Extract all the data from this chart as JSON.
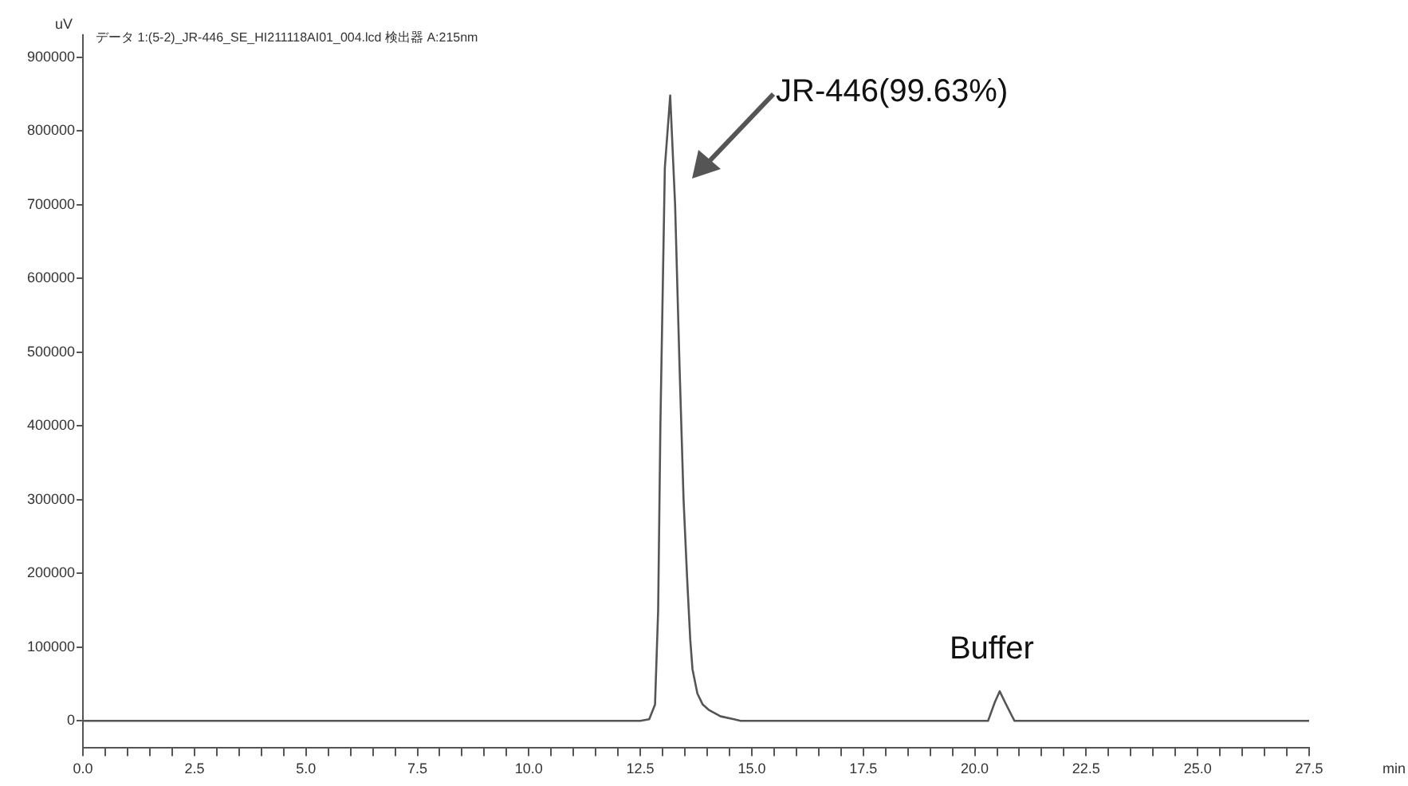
{
  "chart_data": {
    "type": "line",
    "title": "データ 1:(5-2)_JR-446_SE_HI211118AI01_004.lcd 検出器 A:215nm",
    "xlabel": "min",
    "ylabel": "uV",
    "annotations": [
      "JR-446(99.63%)",
      {
        "text": "Buffer",
        "x": 20.56,
        "y": 40500
      }
    ],
    "series": [
      {
        "color": "#555555",
        "x": [
          0,
          5,
          10,
          12.5,
          12.7,
          12.83,
          12.9,
          12.95,
          13.05,
          13.17,
          13.28,
          13.38,
          13.47,
          13.55,
          13.62,
          13.67,
          13.78,
          13.9,
          14.03,
          14.3,
          14.6,
          14.75,
          17.5,
          20.3,
          20.45,
          20.56,
          20.68,
          20.89,
          21.1,
          25,
          27.5
        ],
        "values": [
          0,
          0,
          0,
          0,
          2000,
          22000,
          150000,
          400000,
          750000,
          848000,
          700000,
          480000,
          300000,
          193000,
          110000,
          70000,
          37000,
          22000,
          15000,
          6000,
          2000,
          0,
          0,
          0,
          25000,
          40000,
          25000,
          0,
          0,
          0,
          0
        ]
      }
    ],
    "xlim": [
      0,
      27.5
    ],
    "ylim": [
      -37000,
      930000
    ],
    "yticks": [
      0,
      100000,
      200000,
      300000,
      400000,
      500000,
      600000,
      700000,
      800000,
      900000
    ],
    "xticks": [
      {
        "value": 0,
        "label": "0.0"
      },
      {
        "value": 0.5,
        "label": null
      },
      {
        "value": 1,
        "label": null
      },
      {
        "value": 1.5,
        "label": null
      },
      {
        "value": 2,
        "label": null
      },
      {
        "value": 2.5,
        "label": "2.5"
      },
      {
        "value": 3,
        "label": null
      },
      {
        "value": 3.5,
        "label": null
      },
      {
        "value": 4,
        "label": null
      },
      {
        "value": 4.5,
        "label": null
      },
      {
        "value": 5,
        "label": "5.0"
      },
      {
        "value": 5.5,
        "label": null
      },
      {
        "value": 6,
        "label": null
      },
      {
        "value": 6.5,
        "label": null
      },
      {
        "value": 7,
        "label": null
      },
      {
        "value": 7.5,
        "label": "7.5"
      },
      {
        "value": 8,
        "label": null
      },
      {
        "value": 8.5,
        "label": null
      },
      {
        "value": 9,
        "label": null
      },
      {
        "value": 9.5,
        "label": null
      },
      {
        "value": 10,
        "label": "10.0"
      },
      {
        "value": 10.5,
        "label": null
      },
      {
        "value": 11,
        "label": null
      },
      {
        "value": 11.5,
        "label": null
      },
      {
        "value": 12,
        "label": null
      },
      {
        "value": 12.5,
        "label": "12.5"
      },
      {
        "value": 13,
        "label": null
      },
      {
        "value": 13.5,
        "label": null
      },
      {
        "value": 14,
        "label": null
      },
      {
        "value": 14.5,
        "label": null
      },
      {
        "value": 15,
        "label": "15.0"
      },
      {
        "value": 15.5,
        "label": null
      },
      {
        "value": 16,
        "label": null
      },
      {
        "value": 16.5,
        "label": null
      },
      {
        "value": 17,
        "label": null
      },
      {
        "value": 17.5,
        "label": "17.5"
      },
      {
        "value": 18,
        "label": null
      },
      {
        "value": 18.5,
        "label": null
      },
      {
        "value": 19,
        "label": null
      },
      {
        "value": 19.5,
        "label": null
      },
      {
        "value": 20,
        "label": "20.0"
      },
      {
        "value": 20.5,
        "label": null
      },
      {
        "value": 21,
        "label": null
      },
      {
        "value": 21.5,
        "label": null
      },
      {
        "value": 22,
        "label": null
      },
      {
        "value": 22.5,
        "label": "22.5"
      },
      {
        "value": 23,
        "label": null
      },
      {
        "value": 23.5,
        "label": null
      },
      {
        "value": 24,
        "label": null
      },
      {
        "value": 24.5,
        "label": null
      },
      {
        "value": 25,
        "label": "25.0"
      },
      {
        "value": 25.5,
        "label": null
      },
      {
        "value": 26,
        "label": null
      },
      {
        "value": 26.5,
        "label": null
      },
      {
        "value": 27,
        "label": null
      },
      {
        "value": 27.5,
        "label": "27.5"
      }
    ],
    "legend": false,
    "marker": "none",
    "line_style": "solid"
  }
}
